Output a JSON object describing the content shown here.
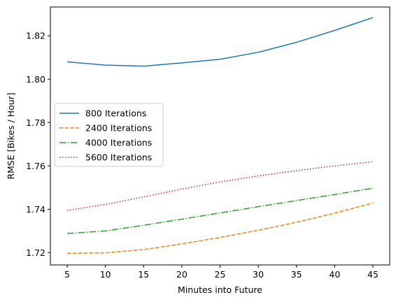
{
  "chart_data": {
    "type": "line",
    "title": "",
    "xlabel": "Minutes into Future",
    "ylabel": "RMSE [Bikes / Hour]",
    "x": [
      5,
      10,
      15,
      20,
      25,
      30,
      35,
      40,
      45
    ],
    "xlim": [
      2.8,
      47.2
    ],
    "ylim": [
      1.7143,
      1.8333
    ],
    "xticks": [
      5,
      10,
      15,
      20,
      25,
      30,
      35,
      40,
      45
    ],
    "yticks": [
      1.72,
      1.74,
      1.76,
      1.78,
      1.8,
      1.82
    ],
    "ytick_labels": [
      "1.72",
      "1.74",
      "1.76",
      "1.78",
      "1.80",
      "1.82"
    ],
    "grid": false,
    "legend_position": "center-left",
    "series": [
      {
        "name": "800 Iterations",
        "color": "#1f77b4",
        "dash": "solid",
        "values": [
          1.808,
          1.8065,
          1.806,
          1.8075,
          1.8092,
          1.8124,
          1.817,
          1.8225,
          1.8284
        ]
      },
      {
        "name": "2400 Iterations",
        "color": "#ff7f0e",
        "dash": "dashed",
        "values": [
          1.7197,
          1.7199,
          1.7214,
          1.724,
          1.727,
          1.7303,
          1.734,
          1.7382,
          1.7429
        ]
      },
      {
        "name": "4000 Iterations",
        "color": "#2ca02c",
        "dash": "dashdot",
        "values": [
          1.7288,
          1.73,
          1.7326,
          1.7354,
          1.7383,
          1.7412,
          1.744,
          1.7468,
          1.7497
        ]
      },
      {
        "name": "5600 Iterations",
        "color": "#d62728",
        "dash": "dotted",
        "values": [
          1.7395,
          1.7422,
          1.7457,
          1.7493,
          1.7526,
          1.7554,
          1.7578,
          1.76,
          1.7619
        ]
      }
    ]
  }
}
